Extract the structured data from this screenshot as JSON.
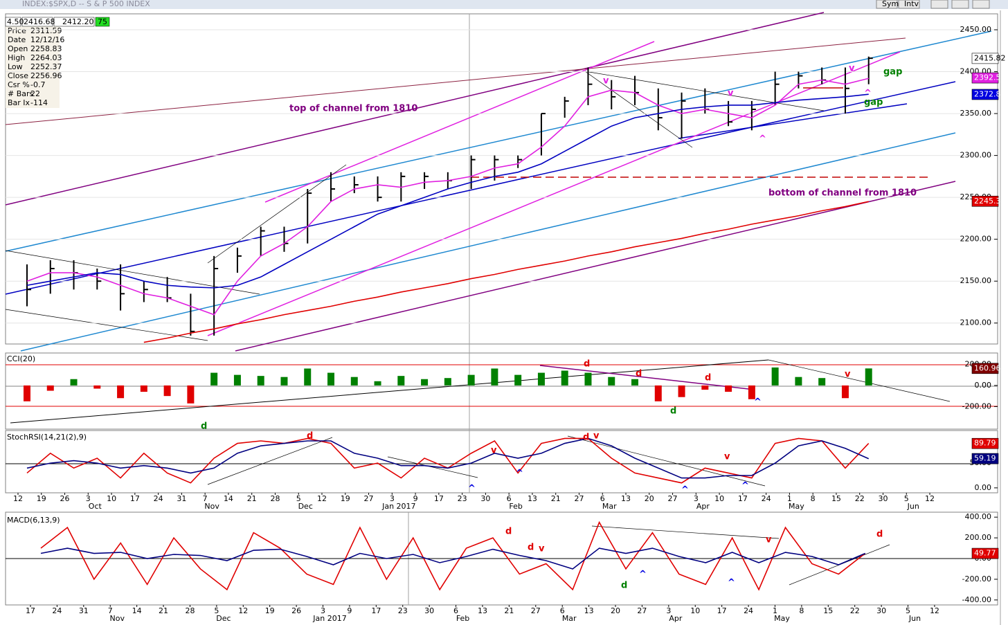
{
  "chart_data": [
    {
      "type": "hlc",
      "title": "INDEX:$SPX,D -- S & P 500 INDEX",
      "toolbar": [
        "Sym",
        "Intv"
      ],
      "header_values": [
        "4.50",
        "2416.68",
        "2412.20",
        "75"
      ],
      "info": [
        [
          "Price",
          "2311.59"
        ],
        [
          "Date",
          "12/12/16"
        ],
        [
          "Open",
          "2258.83"
        ],
        [
          "High",
          "2264.03"
        ],
        [
          "Low",
          "2252.37"
        ],
        [
          "Close",
          "2256.96"
        ],
        [
          "Csr %",
          "-0.7"
        ],
        [
          "# Bars",
          "22"
        ],
        [
          "Bar Ix",
          "-114"
        ]
      ],
      "ylim": [
        2075,
        2469
      ],
      "yticks": [
        {
          "value": 2100,
          "label": "2100.00"
        },
        {
          "value": 2150,
          "label": "2150.00"
        },
        {
          "value": 2200,
          "label": "2200.00"
        },
        {
          "value": 2250,
          "label": "2250.00"
        },
        {
          "value": 2300,
          "label": "2300.00"
        },
        {
          "value": 2350,
          "label": "2350.00"
        },
        {
          "value": 2400,
          "label": "2400.00"
        },
        {
          "value": 2450,
          "label": "2450.00"
        }
      ],
      "grid": true,
      "bars": {
        "color": "#000000",
        "high": [
          2170,
          2175,
          2175,
          2165,
          2170,
          2150,
          2155,
          2135,
          2180,
          2190,
          2215,
          2215,
          2260,
          2280,
          2275,
          2275,
          2280,
          2280,
          2280,
          2300,
          2300,
          2300,
          2350,
          2370,
          2405,
          2390,
          2395,
          2380,
          2375,
          2380,
          2365,
          2365,
          2400,
          2400,
          2405,
          2405,
          2418,
          null,
          null,
          null
        ],
        "low": [
          2120,
          2135,
          2140,
          2140,
          2115,
          2125,
          2125,
          2085,
          2085,
          2160,
          2180,
          2185,
          2195,
          2245,
          2255,
          2245,
          2245,
          2260,
          2260,
          2260,
          2270,
          2285,
          2300,
          2345,
          2360,
          2355,
          2360,
          2330,
          2320,
          2350,
          2335,
          2330,
          2360,
          2380,
          2385,
          2350,
          2385,
          null,
          null,
          null
        ],
        "close": [
          2140,
          2165,
          2160,
          2150,
          2135,
          2140,
          2130,
          2090,
          2165,
          2180,
          2210,
          2195,
          2255,
          2260,
          2265,
          2250,
          2275,
          2275,
          2270,
          2295,
          2295,
          2295,
          2350,
          2365,
          2385,
          2370,
          2375,
          2345,
          2365,
          2355,
          2340,
          2355,
          2385,
          2395,
          2390,
          2380,
          2416,
          null,
          null,
          null
        ]
      },
      "series": [
        {
          "color": "#e020e0",
          "values": [
            2150,
            2160,
            2160,
            2155,
            2145,
            2135,
            2130,
            2120,
            2110,
            2150,
            2180,
            2195,
            2215,
            2245,
            2260,
            2265,
            2262,
            2268,
            2270,
            2275,
            2285,
            2290,
            2310,
            2335,
            2370,
            2378,
            2375,
            2360,
            2350,
            2355,
            2350,
            2345,
            2360,
            2385,
            2390,
            2385,
            2392,
            null,
            null,
            null
          ]
        },
        {
          "color": "#0000c0",
          "values": [
            2145,
            2150,
            2155,
            2160,
            2158,
            2150,
            2145,
            2143,
            2142,
            2145,
            2155,
            2170,
            2185,
            2200,
            2215,
            2230,
            2240,
            2250,
            2260,
            2268,
            2275,
            2280,
            2290,
            2305,
            2320,
            2335,
            2345,
            2350,
            2355,
            2358,
            2360,
            2360,
            2363,
            2366,
            2368,
            2370,
            2373,
            null,
            null,
            null
          ]
        },
        {
          "color": "#e00000",
          "values": [
            null,
            null,
            null,
            null,
            null,
            2077,
            2082,
            2088,
            2093,
            2099,
            2104,
            2110,
            2115,
            2120,
            2126,
            2131,
            2137,
            2142,
            2147,
            2153,
            2158,
            2164,
            2169,
            2174,
            2180,
            2185,
            2191,
            2196,
            2201,
            2207,
            2212,
            2218,
            2223,
            2228,
            2234,
            2239,
            2245,
            null,
            null,
            null
          ]
        }
      ],
      "tags": [
        {
          "value": 2415.82,
          "fill": "#ffffff",
          "text_color": "#000000"
        },
        {
          "value": 2392.54,
          "fill": "#e020e0",
          "text_color": "#ffffff"
        },
        {
          "value": 2372.8,
          "label": "2372.80",
          "fill": "#0000e0",
          "text_color": "#ffffff"
        },
        {
          "value": 2245.36,
          "fill": "#e00000",
          "text_color": "#ffffff"
        }
      ],
      "annotations": [
        {
          "text": "top of channel from 1810",
          "color": "#800080"
        },
        {
          "text": "bottom of channel from 1810",
          "color": "#800080"
        },
        {
          "text": "v",
          "color": "#e020e0"
        },
        {
          "text": "v",
          "color": "#e020e0"
        },
        {
          "text": "v",
          "color": "#e020e0"
        },
        {
          "text": "^",
          "color": "#e020e0"
        },
        {
          "text": "^",
          "color": "#e020e0"
        },
        {
          "text": "gap",
          "color": "#008000"
        },
        {
          "text": "gap",
          "color": "#008000"
        }
      ]
    },
    {
      "type": "histogram",
      "title": "CCI(20)",
      "ylim": [
        -413,
        307
      ],
      "yticks": [
        {
          "value": 200,
          "label": "200.00"
        },
        {
          "value": 0,
          "label": "0.00"
        },
        {
          "value": -200,
          "label": "-200.00"
        }
      ],
      "positive_color": "#008000",
      "negative_color": "#e00000",
      "values": [
        -150,
        -50,
        60,
        -30,
        -120,
        -60,
        -100,
        -170,
        120,
        100,
        90,
        80,
        160,
        120,
        80,
        40,
        90,
        60,
        70,
        100,
        160,
        100,
        120,
        140,
        120,
        80,
        60,
        -150,
        -110,
        -40,
        -60,
        -130,
        170,
        80,
        70,
        -120,
        161,
        null,
        null,
        null
      ],
      "tags": [
        {
          "value": 160.96,
          "fill": "#800000",
          "text_color": "#ffffff"
        }
      ],
      "annotations": [
        {
          "text": "d",
          "color": "#e00000"
        },
        {
          "text": "d",
          "color": "#e00000"
        },
        {
          "text": "d",
          "color": "#e00000"
        },
        {
          "text": "v",
          "color": "#e00000"
        },
        {
          "text": "d",
          "color": "#008000"
        },
        {
          "text": "d",
          "color": "#008000"
        },
        {
          "text": "^",
          "color": "#0000e0"
        }
      ]
    },
    {
      "type": "line",
      "title": "StochRSI(14,21(2),9)",
      "categories": [
        "12",
        "19",
        "26",
        "3",
        "10",
        "17",
        "24",
        "31",
        "7",
        "14",
        "21",
        "28",
        "5",
        "12",
        "19",
        "27",
        "3",
        "9",
        "17",
        "23",
        "30",
        "6",
        "13",
        "21",
        "27",
        "6",
        "13",
        "20",
        "27",
        "3",
        "10",
        "17",
        "24",
        "1",
        "8",
        "15",
        "22",
        "30",
        "5",
        "12"
      ],
      "month_labels": [
        null,
        null,
        null,
        "Oct",
        null,
        null,
        null,
        null,
        "Nov",
        null,
        null,
        null,
        "Dec",
        null,
        null,
        null,
        "Jan 2017",
        null,
        null,
        null,
        null,
        "Feb",
        null,
        null,
        null,
        "Mar",
        null,
        null,
        null,
        "Apr",
        null,
        null,
        null,
        "May",
        null,
        null,
        null,
        null,
        "Jun",
        null
      ],
      "ylim": [
        -10,
        116
      ],
      "yticks": [
        {
          "value": 50,
          "label": "50.00"
        },
        {
          "value": 0,
          "label": "0.00"
        }
      ],
      "series": [
        {
          "color": "#e00000",
          "values": [
            30,
            70,
            40,
            60,
            20,
            70,
            30,
            10,
            60,
            90,
            95,
            90,
            100,
            90,
            40,
            50,
            20,
            60,
            40,
            70,
            95,
            30,
            90,
            100,
            100,
            60,
            30,
            20,
            10,
            40,
            30,
            20,
            90,
            100,
            95,
            40,
            90,
            null,
            null,
            null
          ]
        },
        {
          "color": "#000080",
          "values": [
            40,
            50,
            55,
            50,
            40,
            45,
            40,
            30,
            40,
            70,
            85,
            90,
            95,
            95,
            70,
            60,
            45,
            45,
            40,
            50,
            70,
            60,
            70,
            90,
            100,
            85,
            60,
            40,
            20,
            20,
            25,
            25,
            50,
            85,
            95,
            80,
            59,
            null,
            null,
            null
          ]
        }
      ],
      "tags": [
        {
          "value": 89.79,
          "fill": "#e00000",
          "text_color": "#ffffff"
        },
        {
          "value": 59.19,
          "fill": "#000080",
          "text_color": "#ffffff"
        }
      ],
      "annotations": [
        {
          "text": "d",
          "color": "#e00000"
        },
        {
          "text": "d",
          "color": "#e00000"
        },
        {
          "text": "v",
          "color": "#e00000"
        },
        {
          "text": "v",
          "color": "#e00000"
        },
        {
          "text": "v",
          "color": "#e00000"
        },
        {
          "text": "^",
          "color": "#0000e0"
        },
        {
          "text": "^",
          "color": "#0000e0"
        },
        {
          "text": "^",
          "color": "#0000e0"
        },
        {
          "text": "^",
          "color": "#0000e0"
        }
      ]
    },
    {
      "type": "line",
      "title": "MACD(6,13,9)",
      "categories": [
        "17",
        "24",
        "31",
        "7",
        "14",
        "21",
        "28",
        "5",
        "12",
        "19",
        "26",
        "3",
        "9",
        "17",
        "23",
        "30",
        "6",
        "13",
        "21",
        "27",
        "6",
        "13",
        "20",
        "27",
        "3",
        "10",
        "17",
        "24",
        "1",
        "8",
        "15",
        "22",
        "30",
        "5",
        "12"
      ],
      "month_labels": [
        null,
        null,
        null,
        "Nov",
        null,
        null,
        null,
        "Dec",
        null,
        null,
        null,
        "Jan 2017",
        null,
        null,
        null,
        null,
        "Feb",
        null,
        null,
        null,
        "Mar",
        null,
        null,
        null,
        "Apr",
        null,
        null,
        null,
        "May",
        null,
        null,
        null,
        null,
        "Jun",
        null
      ],
      "ylim": [
        -448,
        448
      ],
      "yticks": [
        {
          "value": 400,
          "label": "400.00"
        },
        {
          "value": 200,
          "label": "200.00"
        },
        {
          "value": 0,
          "label": "0.00"
        },
        {
          "value": -200,
          "label": "-200.00"
        },
        {
          "value": -400,
          "label": "-400.00"
        }
      ],
      "series": [
        {
          "color": "#e00000",
          "values": [
            100,
            300,
            -200,
            150,
            -250,
            200,
            -100,
            -300,
            250,
            100,
            -150,
            -250,
            300,
            -200,
            200,
            -300,
            100,
            200,
            -150,
            -50,
            -300,
            350,
            -100,
            250,
            -150,
            -250,
            200,
            -300,
            300,
            -50,
            -150,
            50,
            null,
            null,
            null
          ]
        },
        {
          "color": "#000080",
          "values": [
            50,
            100,
            50,
            60,
            0,
            40,
            30,
            -20,
            80,
            90,
            20,
            -60,
            50,
            0,
            40,
            -40,
            20,
            90,
            30,
            -20,
            -100,
            100,
            50,
            100,
            20,
            -40,
            60,
            -40,
            60,
            20,
            -60,
            50,
            null,
            null,
            null
          ]
        }
      ],
      "tags": [
        {
          "value": 49.77,
          "fill": "#e00000",
          "text_color": "#ffffff"
        }
      ],
      "annotations": [
        {
          "text": "d",
          "color": "#e00000"
        },
        {
          "text": "d",
          "color": "#e00000"
        },
        {
          "text": "v",
          "color": "#e00000"
        },
        {
          "text": "d",
          "color": "#008000"
        },
        {
          "text": "^",
          "color": "#0000e0"
        },
        {
          "text": "^",
          "color": "#0000e0"
        },
        {
          "text": "v",
          "color": "#e00000"
        },
        {
          "text": "d",
          "color": "#e00000"
        }
      ]
    }
  ]
}
